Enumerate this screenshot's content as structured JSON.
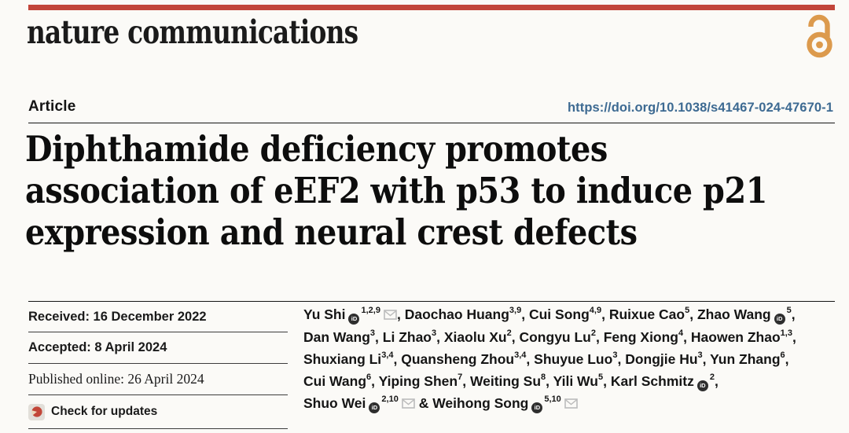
{
  "masthead": {
    "brand": "nature communications"
  },
  "kicker": {
    "article_label": "Article",
    "doi": "https://doi.org/10.1038/s41467-024-47670-1"
  },
  "title": {
    "full": "Diphthamide deficiency promotes association of eEF2 with p53 to induce p21 expression and neural crest defects",
    "lines": [
      "Diphthamide deficiency promotes",
      "association of eEF2 with p53 to induce p21",
      "expression and neural crest defects"
    ]
  },
  "history": {
    "received": "Received: 16 December 2022",
    "accepted": "Accepted: 8 April 2024",
    "published": "Published online: 26 April 2024",
    "check_updates": "Check for updates"
  },
  "authors": [
    {
      "name": "Yu Shi",
      "orcid": true,
      "sup": "1,2,9",
      "email": true
    },
    {
      "name": "Daochao Huang",
      "sup": "3,9"
    },
    {
      "name": "Cui Song",
      "sup": "4,9"
    },
    {
      "name": "Ruixue Cao",
      "sup": "5"
    },
    {
      "name": "Zhao Wang",
      "orcid": true,
      "sup": "5",
      "newline_after": true
    },
    {
      "name": "Dan Wang",
      "sup": "3"
    },
    {
      "name": "Li Zhao",
      "sup": "3"
    },
    {
      "name": "Xiaolu Xu",
      "sup": "2"
    },
    {
      "name": "Congyu Lu",
      "sup": "2"
    },
    {
      "name": "Feng Xiong",
      "sup": "4"
    },
    {
      "name": "Haowen Zhao",
      "sup": "1,3",
      "newline_after": true
    },
    {
      "name": "Shuxiang Li",
      "sup": "3,4"
    },
    {
      "name": "Quansheng Zhou",
      "sup": "3,4"
    },
    {
      "name": "Shuyue Luo",
      "sup": "3"
    },
    {
      "name": "Dongjie Hu",
      "sup": "3"
    },
    {
      "name": "Yun Zhang",
      "sup": "6",
      "newline_after": true
    },
    {
      "name": "Cui Wang",
      "sup": "6"
    },
    {
      "name": "Yiping Shen",
      "sup": "7"
    },
    {
      "name": "Weiting Su",
      "sup": "8"
    },
    {
      "name": "Yili Wu",
      "sup": "5"
    },
    {
      "name": "Karl Schmitz",
      "orcid": true,
      "sup": "2",
      "newline_after": true
    },
    {
      "name": "Shuo Wei",
      "orcid": true,
      "sup": "2,10",
      "email": true
    },
    {
      "name": "Weihong Song",
      "orcid": true,
      "sup": "5,10",
      "email": true
    }
  ],
  "icons": {
    "orcid_glyph": "iD",
    "open_access": "open-access-lock",
    "envelope": "email-envelope",
    "crossmark": "check-for-updates-badge"
  },
  "colors": {
    "brand_red": "#c2453a",
    "open_access_orange": "#dc9a4d",
    "link_blue": "#3d6a92",
    "text": "#141414",
    "background": "#fbfaf7"
  }
}
